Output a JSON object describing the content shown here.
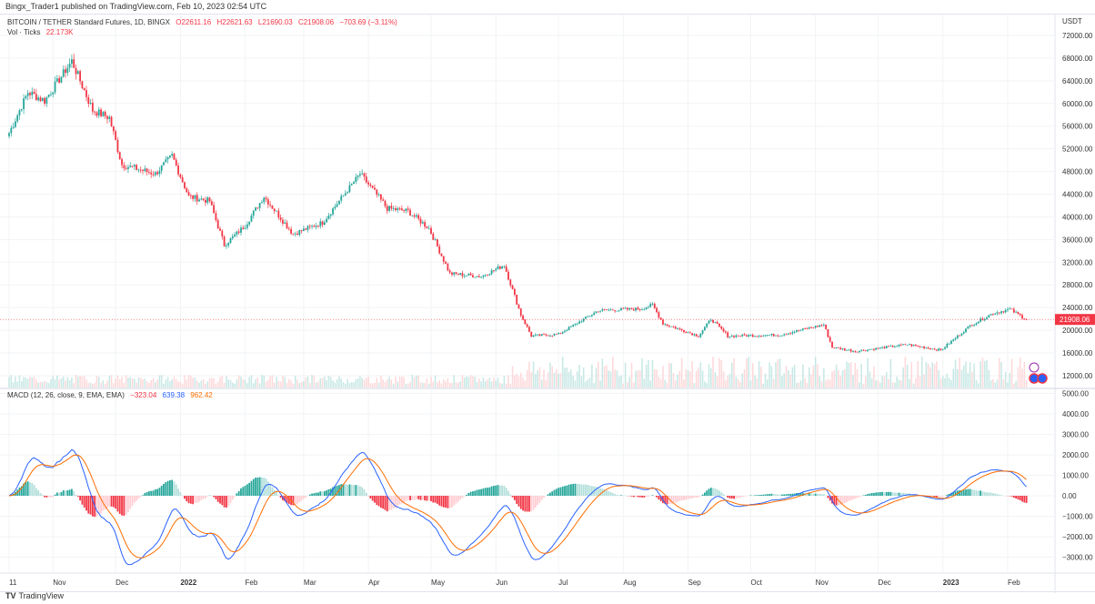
{
  "published": "Bingx_Trader1 published on TradingView.com, Feb 10, 2023 02:54 UTC",
  "legend": {
    "symbol": "BITCOIN / TETHER Standard Futures, 1D, BINGX",
    "o": "O22611.16",
    "h": "H22621.63",
    "l": "L21690.03",
    "c": "C21908.06",
    "change": "−703.69 (−3.11%)",
    "vol_label": "Vol · Ticks",
    "vol_value": "22.173K"
  },
  "macd_legend": {
    "label": "MACD (12, 26, close, 9, EMA, EMA)",
    "hist": "−323.04",
    "macd": "639.38",
    "signal": "962.42"
  },
  "footer": "TradingView",
  "currency": "USDT",
  "last_price": "21908.06",
  "colors": {
    "up": "#26a69a",
    "down": "#f23645",
    "macd": "#2962ff",
    "signal": "#ff6d00",
    "hist_up": "#26a69a",
    "hist_down": "#f23645"
  },
  "chart_data": [
    {
      "type": "candlestick",
      "title": "BITCOIN / TETHER Standard Futures, 1D, BINGX",
      "ylim": [
        10000,
        74000
      ],
      "y_ticks": [
        "72000.00",
        "68000.00",
        "64000.00",
        "60000.00",
        "56000.00",
        "52000.00",
        "48000.00",
        "44000.00",
        "40000.00",
        "36000.00",
        "32000.00",
        "28000.00",
        "24000.00",
        "20000.00",
        "16000.00",
        "12000.00"
      ],
      "x_ticks": [
        "11",
        "Nov",
        "Dec",
        "2022",
        "Feb",
        "Mar",
        "Apr",
        "May",
        "Jun",
        "Jul",
        "Aug",
        "Sep",
        "Oct",
        "Nov",
        "Dec",
        "2023",
        "Feb"
      ],
      "close_keypoints": [
        [
          "2021-10-11",
          54800
        ],
        [
          "2021-10-20",
          62000
        ],
        [
          "2021-10-28",
          60500
        ],
        [
          "2021-11-10",
          67500
        ],
        [
          "2021-11-20",
          58800
        ],
        [
          "2021-11-28",
          57500
        ],
        [
          "2021-12-04",
          49200
        ],
        [
          "2021-12-20",
          47600
        ],
        [
          "2021-12-28",
          50800
        ],
        [
          "2022-01-05",
          43600
        ],
        [
          "2022-01-15",
          42800
        ],
        [
          "2022-01-22",
          35000
        ],
        [
          "2022-02-01",
          38500
        ],
        [
          "2022-02-10",
          43600
        ],
        [
          "2022-02-24",
          37000
        ],
        [
          "2022-03-10",
          39000
        ],
        [
          "2022-03-28",
          47600
        ],
        [
          "2022-04-10",
          41500
        ],
        [
          "2022-04-20",
          41000
        ],
        [
          "2022-04-30",
          38000
        ],
        [
          "2022-05-10",
          30000
        ],
        [
          "2022-05-25",
          29500
        ],
        [
          "2022-06-05",
          31500
        ],
        [
          "2022-06-13",
          22700
        ],
        [
          "2022-06-18",
          19000
        ],
        [
          "2022-07-01",
          19300
        ],
        [
          "2022-07-20",
          23500
        ],
        [
          "2022-08-10",
          23800
        ],
        [
          "2022-08-15",
          24500
        ],
        [
          "2022-08-20",
          21200
        ],
        [
          "2022-09-06",
          19000
        ],
        [
          "2022-09-12",
          22000
        ],
        [
          "2022-09-20",
          19000
        ],
        [
          "2022-10-15",
          19200
        ],
        [
          "2022-11-05",
          21000
        ],
        [
          "2022-11-09",
          17000
        ],
        [
          "2022-11-20",
          16300
        ],
        [
          "2022-12-15",
          17500
        ],
        [
          "2022-12-31",
          16500
        ],
        [
          "2023-01-14",
          20800
        ],
        [
          "2023-01-25",
          23000
        ],
        [
          "2023-02-02",
          23700
        ],
        [
          "2023-02-10",
          21908.06
        ]
      ]
    },
    {
      "type": "macd",
      "ylim": [
        -3500,
        5200
      ],
      "y_ticks": [
        "5000.00",
        "4000.00",
        "3000.00",
        "2000.00",
        "1000.00",
        "0.00",
        "−1000.00",
        "−2000.00",
        "−3000.00"
      ],
      "params": {
        "fast": 12,
        "slow": 26,
        "signal": 9
      }
    }
  ]
}
